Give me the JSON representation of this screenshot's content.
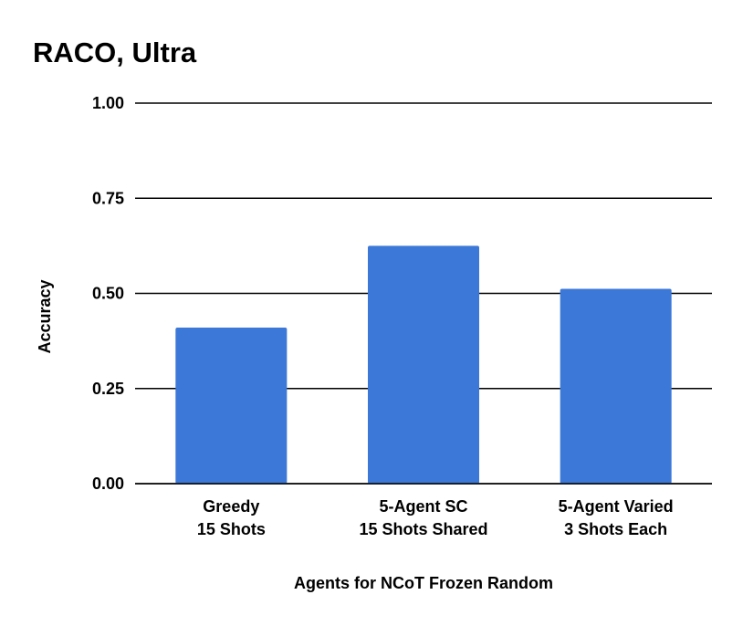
{
  "chart_data": {
    "type": "bar",
    "title": "RACO, Ultra",
    "xlabel": "Agents for NCoT Frozen Random",
    "ylabel": "Accuracy",
    "ylim": [
      0,
      1
    ],
    "yticks": [
      "0.00",
      "0.25",
      "0.50",
      "0.75",
      "1.00"
    ],
    "categories": [
      [
        "Greedy",
        "15 Shots"
      ],
      [
        "5-Agent SC",
        "15 Shots Shared"
      ],
      [
        "5-Agent Varied",
        "3 Shots Each"
      ]
    ],
    "values": [
      0.41,
      0.625,
      0.512
    ],
    "grid": true,
    "legend": "none",
    "bar_color": "#3c78d8",
    "gridline_color": "#000000"
  }
}
